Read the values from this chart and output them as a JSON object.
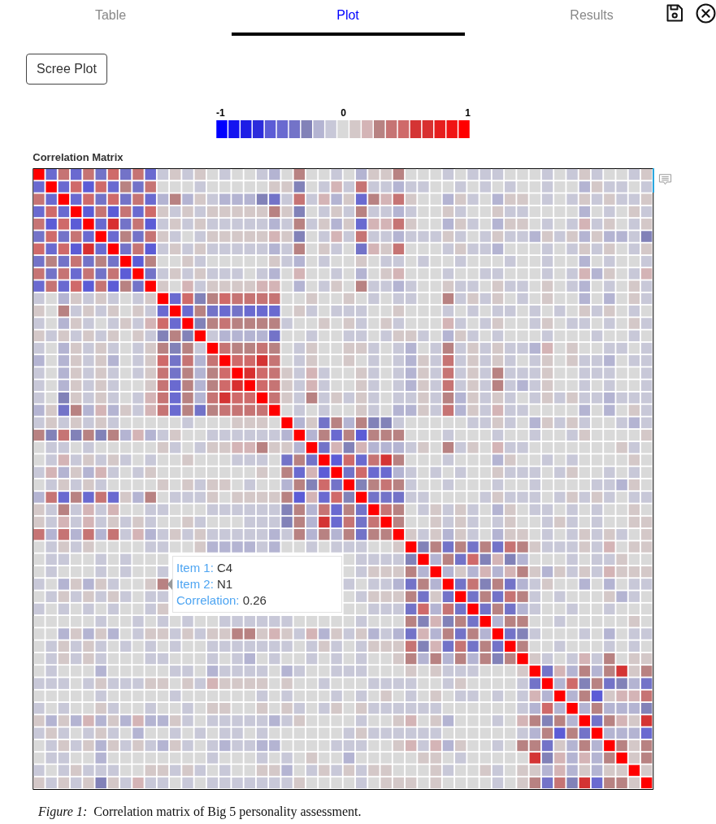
{
  "chart_data": {
    "type": "heatmap",
    "title": "Correlation Matrix",
    "categories": [
      null,
      null,
      null,
      null,
      null,
      null,
      null,
      null,
      null,
      null,
      null,
      null,
      null,
      null,
      null,
      null,
      null,
      null,
      null,
      null,
      null,
      null,
      null,
      null,
      null,
      null,
      null,
      null,
      null,
      null,
      null,
      null,
      null,
      null,
      null,
      null,
      null,
      null,
      null,
      null,
      null,
      null,
      null,
      null,
      null,
      null,
      null,
      null,
      null,
      null
    ],
    "y_categories": [
      null,
      null,
      null,
      null,
      null,
      null,
      null,
      null,
      null,
      null,
      null,
      null,
      null,
      null,
      null,
      null,
      null,
      null,
      null,
      null,
      null,
      null,
      null,
      null,
      null,
      null,
      null,
      null,
      null,
      null,
      null,
      null,
      null,
      null,
      null,
      null,
      null,
      null,
      null,
      null,
      null,
      null,
      null,
      null,
      null,
      null,
      null,
      null,
      null,
      null
    ],
    "cells": [
      [
        1,
        -0.5,
        0.4,
        -0.5,
        0.4,
        -0.4,
        0.5,
        -0.4,
        0.4,
        -0.5,
        -0.1,
        0.1,
        -0.1,
        0.1,
        0,
        -0.1,
        0,
        0,
        -0.1,
        -0.2,
        0,
        0.3,
        0,
        0,
        -0.1,
        0,
        -0.2,
        0.1,
        0.1,
        0.3,
        0,
        0,
        0,
        -0.1,
        0,
        -0.1,
        -0.1,
        -0.1,
        0,
        0,
        0,
        -0.1,
        0,
        -0.1,
        0.1,
        -0.1,
        0,
        0,
        -0.1,
        0.1
      ],
      [
        -0.5,
        1,
        -0.5,
        0.5,
        -0.6,
        0.5,
        -0.5,
        0.3,
        -0.4,
        0.4,
        0,
        0,
        0,
        -0.1,
        0,
        0,
        0,
        0,
        0,
        0.1,
        0.1,
        -0.3,
        0,
        -0.1,
        0.2,
        -0.1,
        0.4,
        -0.1,
        -0.1,
        -0.2,
        -0.1,
        -0.1,
        0,
        0,
        -0.1,
        0,
        -0.1,
        0,
        -0.1,
        0,
        0,
        -0.1,
        0,
        0,
        -0.2,
        0.1,
        -0.1,
        -0.1,
        0,
        -0.1
      ],
      [
        0.4,
        -0.5,
        1,
        -0.5,
        0.5,
        -0.4,
        0.5,
        -0.4,
        0.4,
        -0.5,
        -0.2,
        0.3,
        -0.2,
        0.1,
        -0.1,
        -0.2,
        -0.2,
        -0.2,
        -0.3,
        -0.4,
        -0.1,
        0.4,
        -0.1,
        0.2,
        -0.2,
        0.1,
        -0.5,
        0.3,
        0.2,
        0.4,
        0.1,
        0,
        0,
        -0.2,
        0.1,
        -0.1,
        0,
        -0.2,
        0.1,
        0.1,
        0,
        -0.1,
        0,
        -0.1,
        0.1,
        -0.1,
        0.1,
        -0.1,
        -0.1,
        0.1
      ],
      [
        -0.5,
        0.5,
        -0.5,
        1,
        -0.6,
        0.4,
        -0.6,
        0.4,
        -0.5,
        0.5,
        0.1,
        -0.1,
        0.1,
        -0.1,
        0.1,
        0.1,
        0.1,
        0.1,
        0.1,
        0.3,
        0.1,
        -0.3,
        0,
        -0.1,
        0.1,
        -0.1,
        0.3,
        -0.1,
        -0.1,
        -0.2,
        -0.1,
        0,
        0,
        0.1,
        -0.1,
        0,
        0,
        0.1,
        -0.1,
        -0.1,
        0,
        0,
        0,
        0,
        -0.2,
        0,
        -0.1,
        0,
        0.1,
        -0.1
      ],
      [
        0.4,
        -0.6,
        0.5,
        -0.6,
        1,
        -0.5,
        0.7,
        -0.4,
        0.4,
        -0.6,
        -0.1,
        0.1,
        -0.1,
        0.1,
        -0.1,
        -0.1,
        -0.1,
        -0.1,
        -0.1,
        -0.2,
        -0.1,
        0.3,
        -0.1,
        0.1,
        -0.2,
        0.1,
        -0.5,
        0.2,
        0.2,
        0.4,
        0.1,
        0,
        0,
        -0.2,
        0.1,
        -0.1,
        0,
        -0.2,
        0.1,
        0.1,
        0,
        -0.1,
        0,
        -0.1,
        0.2,
        -0.1,
        0.1,
        0,
        -0.1,
        0.1
      ],
      [
        -0.4,
        0.5,
        -0.4,
        0.4,
        -0.5,
        1,
        -0.5,
        0.3,
        -0.4,
        0.4,
        0.1,
        -0.1,
        0,
        -0.1,
        0.1,
        0.1,
        0.1,
        0.1,
        0.1,
        0.2,
        0.1,
        -0.3,
        0,
        -0.1,
        0.2,
        -0.1,
        0.4,
        -0.1,
        -0.1,
        -0.2,
        -0.1,
        -0.1,
        -0.1,
        0.1,
        -0.1,
        0,
        -0.1,
        0.1,
        -0.1,
        -0.1,
        -0.2,
        0.1,
        -0.1,
        0.1,
        -0.2,
        0.1,
        -0.2,
        -0.2,
        -0.1,
        -0.3
      ],
      [
        0.5,
        -0.5,
        0.5,
        -0.6,
        0.7,
        -0.5,
        1,
        -0.4,
        0.4,
        -0.6,
        -0.1,
        0.1,
        -0.1,
        0.1,
        -0.1,
        -0.1,
        -0.1,
        -0.1,
        -0.1,
        -0.2,
        -0.1,
        0.3,
        0,
        0.1,
        -0.1,
        0,
        -0.4,
        0.2,
        0.1,
        0.4,
        0,
        0,
        0,
        -0.1,
        0.1,
        -0.1,
        -0.1,
        -0.2,
        0,
        0,
        0,
        -0.1,
        0,
        -0.1,
        0.1,
        -0.1,
        0.1,
        0,
        -0.1,
        0.1
      ],
      [
        -0.4,
        0.3,
        -0.4,
        0.4,
        -0.4,
        0.3,
        -0.4,
        1,
        -0.6,
        0.3,
        0,
        0,
        0.1,
        -0.1,
        0,
        0,
        0,
        0,
        0,
        0.1,
        -0.1,
        -0.2,
        0,
        -0.1,
        0,
        0,
        0.1,
        0,
        -0.1,
        -0.1,
        0,
        -0.1,
        0,
        0,
        -0.1,
        0,
        0,
        0,
        -0.1,
        0,
        0,
        -0.1,
        0,
        0,
        -0.2,
        0,
        -0.1,
        0,
        0,
        -0.1
      ],
      [
        0.4,
        -0.4,
        0.4,
        -0.5,
        0.4,
        -0.4,
        0.4,
        -0.6,
        1,
        -0.4,
        -0.1,
        0.1,
        -0.1,
        0.1,
        -0.1,
        -0.1,
        -0.1,
        0,
        -0.1,
        -0.2,
        0,
        0.2,
        0,
        0,
        -0.1,
        0,
        -0.2,
        0,
        0.1,
        0.2,
        0,
        0,
        0,
        -0.1,
        0,
        0,
        -0.1,
        -0.1,
        0,
        0,
        0,
        -0.1,
        0,
        -0.1,
        0.2,
        -0.2,
        0.1,
        0,
        -0.1,
        0.2
      ],
      [
        -0.5,
        0.4,
        -0.5,
        0.5,
        -0.6,
        0.4,
        -0.6,
        0.3,
        -0.4,
        1,
        0.1,
        0,
        0.2,
        -0.1,
        0.1,
        0.1,
        0.1,
        0.1,
        0.2,
        0.2,
        0,
        -0.2,
        0,
        -0.1,
        0.1,
        0,
        0.3,
        -0.1,
        -0.1,
        -0.2,
        -0.1,
        0,
        0,
        0.1,
        -0.1,
        -0.1,
        0,
        0.1,
        -0.1,
        -0.1,
        0,
        0.1,
        0,
        -0.1,
        -0.2,
        0,
        -0.1,
        0,
        0.1,
        -0.1
      ],
      [
        -0.1,
        0,
        -0.2,
        0.1,
        -0.1,
        0.1,
        -0.1,
        0,
        -0.1,
        0.1,
        1,
        -0.5,
        0.5,
        -0.3,
        0.3,
        0.5,
        0.4,
        0.4,
        0.4,
        0.4,
        0,
        0,
        0.1,
        0,
        0,
        0.1,
        0,
        -0.1,
        0,
        -0.1,
        -0.1,
        0,
        0,
        0.26,
        -0.1,
        0.1,
        -0.1,
        0.1,
        0,
        -0.1,
        0,
        0.1,
        0,
        0,
        -0.2,
        0,
        -0.2,
        0,
        0.1,
        -0.1
      ],
      [
        0.1,
        0,
        0.3,
        -0.1,
        0.1,
        -0.1,
        0.1,
        0,
        0.1,
        -0.1,
        -0.5,
        1,
        -0.5,
        0.3,
        -0.4,
        -0.5,
        -0.4,
        -0.5,
        -0.5,
        -0.5,
        0,
        0.1,
        -0.1,
        0,
        -0.1,
        -0.1,
        -0.1,
        0,
        0,
        0.1,
        0,
        0,
        0,
        -0.1,
        0,
        -0.1,
        0,
        -0.1,
        -0.1,
        0,
        -0.1,
        0,
        -0.1,
        0,
        0.1,
        -0.1,
        0.1,
        0,
        -0.1,
        0
      ],
      [
        -0.1,
        0,
        -0.2,
        0.1,
        -0.1,
        0,
        -0.1,
        0.1,
        -0.1,
        0.2,
        0.5,
        -0.5,
        1,
        -0.3,
        0.3,
        0.4,
        0.3,
        0.3,
        0.3,
        0.3,
        -0.1,
        0,
        0,
        0.1,
        0,
        0.1,
        -0.1,
        0,
        0.1,
        -0.1,
        0,
        0,
        0,
        0.2,
        -0.1,
        0,
        -0.1,
        0.1,
        0,
        0,
        -0.1,
        0.1,
        0,
        -0.1,
        -0.1,
        0,
        -0.1,
        0,
        0.1,
        -0.1
      ],
      [
        0.1,
        -0.1,
        0.1,
        -0.1,
        0.1,
        -0.1,
        0.1,
        0,
        0.1,
        -0.1,
        -0.3,
        0.3,
        -0.3,
        1,
        -0.1,
        -0.2,
        -0.2,
        -0.2,
        -0.2,
        -0.4,
        0,
        0,
        -0.1,
        0,
        0,
        -0.1,
        -0.1,
        0,
        -0.1,
        0.1,
        0.1,
        -0.1,
        0,
        -0.2,
        0.1,
        -0.1,
        0,
        -0.1,
        0,
        0,
        0,
        -0.1,
        0,
        0,
        0,
        -0.1,
        0,
        0,
        -0.1,
        0
      ],
      [
        -0.1,
        0,
        -0.2,
        0.1,
        -0.1,
        0.1,
        -0.1,
        0,
        -0.1,
        0.1,
        0.3,
        -0.3,
        0.3,
        -0.1,
        1,
        0.4,
        0.3,
        0.3,
        0.4,
        0.3,
        0,
        -0.1,
        0.1,
        0,
        0,
        0.1,
        0.1,
        -0.1,
        0,
        -0.1,
        -0.2,
        0,
        -0.1,
        0.3,
        -0.1,
        0.1,
        -0.1,
        0.1,
        -0.1,
        -0.1,
        -0.2,
        0.2,
        0,
        0.1,
        0,
        0,
        -0.1,
        -0.1,
        0,
        -0.1
      ],
      [
        -0.2,
        0,
        -0.2,
        0.1,
        -0.1,
        0.1,
        -0.2,
        0,
        -0.1,
        0.1,
        0.5,
        -0.4,
        0.4,
        -0.2,
        0.4,
        1,
        0.5,
        0.5,
        0.6,
        0.4,
        0,
        -0.1,
        0.1,
        0,
        0,
        0.1,
        0,
        -0.1,
        0,
        -0.1,
        -0.2,
        0.1,
        -0.1,
        0.4,
        -0.1,
        0.1,
        -0.1,
        0.1,
        -0.1,
        0,
        -0.1,
        0.1,
        0,
        0.1,
        -0.1,
        -0.1,
        -0.2,
        0,
        -0.1,
        -0.1
      ],
      [
        -0.1,
        0,
        -0.2,
        0.1,
        -0.1,
        0.1,
        -0.1,
        0,
        -0.1,
        0.1,
        0.4,
        -0.4,
        0.3,
        -0.2,
        0.3,
        0.5,
        1,
        0.7,
        0.5,
        0.4,
        0.1,
        -0.1,
        0.2,
        -0.1,
        0,
        0,
        0.1,
        -0.1,
        0,
        -0.1,
        -0.2,
        0.1,
        -0.1,
        0.4,
        -0.1,
        0.1,
        -0.1,
        0.3,
        -0.1,
        -0.1,
        -0.1,
        0.1,
        0,
        0,
        -0.1,
        -0.1,
        -0.1,
        0,
        0,
        -0.1
      ],
      [
        -0.1,
        0,
        -0.2,
        0.1,
        -0.1,
        0.1,
        -0.1,
        0,
        0,
        0.1,
        0.4,
        -0.5,
        0.3,
        -0.2,
        0.3,
        0.5,
        0.7,
        1,
        0.5,
        0.4,
        0.1,
        -0.1,
        0.2,
        -0.1,
        0,
        0,
        0.1,
        -0.1,
        0,
        -0.1,
        -0.2,
        0.1,
        -0.1,
        0.4,
        -0.1,
        0.1,
        -0.1,
        0.3,
        -0.1,
        -0.2,
        -0.1,
        0.1,
        0,
        0,
        -0.1,
        0,
        -0.1,
        0,
        0,
        -0.1
      ],
      [
        -0.1,
        0,
        -0.3,
        0.1,
        -0.1,
        0.1,
        -0.1,
        0,
        -0.1,
        0.2,
        0.4,
        -0.5,
        0.3,
        -0.2,
        0.4,
        0.6,
        0.5,
        0.5,
        1,
        0.4,
        0.1,
        -0.1,
        0.3,
        -0.1,
        0.1,
        -0.1,
        0.1,
        -0.1,
        0,
        -0.1,
        -0.1,
        0.1,
        -0.1,
        0.3,
        -0.2,
        0.1,
        -0.1,
        0.1,
        -0.1,
        0,
        -0.1,
        0.1,
        -0.1,
        0.1,
        -0.1,
        -0.1,
        -0.2,
        -0.1,
        -0.1,
        -0.1
      ],
      [
        -0.2,
        0.1,
        -0.4,
        0.3,
        -0.2,
        0.2,
        -0.2,
        0.1,
        -0.1,
        0.2,
        0.4,
        -0.5,
        0.3,
        -0.4,
        0.3,
        0.4,
        0.4,
        0.4,
        0.4,
        1,
        0,
        -0.1,
        0,
        -0.1,
        0,
        0,
        0.1,
        -0.1,
        0,
        -0.2,
        -0.2,
        0.1,
        -0.1,
        0.4,
        -0.2,
        0.1,
        -0.1,
        0.2,
        -0.1,
        -0.1,
        0,
        0,
        0,
        0,
        -0.2,
        0,
        -0.2,
        0,
        0.1,
        -0.1
      ],
      [
        -0.1,
        0.1,
        -0.1,
        0.1,
        -0.1,
        0.1,
        -0.1,
        0,
        0,
        0,
        0,
        0,
        -0.1,
        0,
        0,
        0,
        0.1,
        0.1,
        0.1,
        0,
        1,
        -0.2,
        0.1,
        -0.4,
        0.3,
        -0.2,
        0.3,
        -0.3,
        -0.3,
        -0.1,
        0,
        0,
        0,
        0,
        0,
        -0.1,
        -0.1,
        0.1,
        -0.1,
        0,
        -0.2,
        0.1,
        -0.1,
        0.1,
        -0.1,
        0,
        0,
        -0.1,
        -0.2,
        -0.1
      ],
      [
        0.3,
        -0.3,
        0.4,
        -0.3,
        0.3,
        -0.3,
        0.3,
        -0.2,
        0.2,
        -0.2,
        -0.1,
        0.1,
        0,
        0,
        -0.1,
        -0.1,
        -0.1,
        -0.1,
        -0.1,
        -0.1,
        -0.2,
        1,
        -0.2,
        0.3,
        -0.5,
        0.3,
        -0.6,
        0.3,
        0.3,
        0.3,
        0,
        0,
        0,
        -0.1,
        0,
        0,
        0,
        -0.1,
        0,
        0,
        -0.1,
        0,
        0,
        -0.1,
        0.1,
        0,
        0,
        0,
        0,
        0.1
      ],
      [
        0,
        -0.1,
        -0.1,
        0,
        -0.1,
        0,
        0,
        0,
        0,
        0,
        0.1,
        -0.1,
        0,
        -0.1,
        0.1,
        0.1,
        0.2,
        0.2,
        0.3,
        0.1,
        0.1,
        -0.2,
        1,
        -0.4,
        0.2,
        -0.3,
        0.2,
        -0.2,
        -0.2,
        -0.2,
        -0.1,
        0.1,
        0,
        0.3,
        -0.1,
        0.1,
        0,
        0.2,
        -0.1,
        -0.1,
        0,
        0,
        0,
        0,
        0,
        0,
        0,
        0.1,
        -0.1,
        0
      ],
      [
        0,
        -0.1,
        0.2,
        -0.1,
        0.1,
        -0.1,
        0.1,
        -0.1,
        0,
        -0.1,
        0,
        0,
        0.1,
        0,
        0,
        0,
        -0.1,
        -0.1,
        -0.1,
        0,
        -0.4,
        0.3,
        -0.4,
        1,
        -0.6,
        0.5,
        -0.5,
        0.4,
        0.6,
        0.3,
        0,
        0,
        0,
        -0.1,
        0,
        0,
        0,
        -0.2,
        0.1,
        0,
        0,
        -0.1,
        0,
        -0.1,
        0,
        0,
        0,
        0,
        0.1,
        0
      ],
      [
        -0.1,
        0.2,
        -0.2,
        0.1,
        -0.2,
        0.2,
        -0.1,
        0,
        -0.1,
        0.1,
        0,
        0,
        0,
        0,
        0,
        0,
        0,
        0,
        0.1,
        0,
        0.3,
        -0.5,
        0.2,
        -0.6,
        1,
        -0.4,
        0.5,
        -0.5,
        -0.5,
        -0.2,
        -0.1,
        0,
        -0.1,
        0,
        -0.1,
        0,
        0,
        0.1,
        -0.1,
        -0.1,
        -0.1,
        0,
        -0.1,
        0.1,
        0,
        0,
        -0.1,
        0,
        -0.1,
        0
      ],
      [
        0,
        -0.1,
        0.1,
        -0.1,
        0.1,
        -0.1,
        0,
        0,
        0,
        0,
        0.1,
        0,
        0.1,
        -0.1,
        0.1,
        0.1,
        0,
        -0.1,
        0,
        0,
        -0.2,
        0.3,
        -0.3,
        0.5,
        -0.4,
        1,
        -0.3,
        0.3,
        0.4,
        0.3,
        -0.1,
        0,
        0,
        -0.1,
        0,
        0,
        0,
        -0.1,
        0,
        0,
        -0.1,
        0,
        0,
        0,
        0,
        -0.1,
        -0.1,
        -0.2,
        0.1,
        0
      ],
      [
        -0.2,
        0.4,
        -0.5,
        0.3,
        -0.5,
        0.4,
        -0.5,
        0.1,
        -0.2,
        0.3,
        0,
        -0.1,
        -0.1,
        -0.1,
        0.1,
        0,
        0.1,
        0.1,
        0.1,
        0.1,
        0.3,
        -0.6,
        0.2,
        -0.5,
        0.5,
        -0.3,
        1,
        -0.4,
        -0.4,
        -0.4,
        -0.1,
        -0.1,
        0,
        0,
        0,
        0,
        -0.1,
        0.1,
        -0.1,
        -0.1,
        -0.1,
        0,
        -0.1,
        0.1,
        -0.1,
        0.1,
        -0.1,
        0,
        -0.1,
        -0.1
      ],
      [
        0.1,
        -0.1,
        0.3,
        -0.1,
        0.2,
        -0.1,
        0.2,
        0,
        0,
        -0.1,
        -0.1,
        0,
        0,
        0,
        -0.1,
        -0.1,
        -0.1,
        -0.1,
        -0.1,
        -0.1,
        -0.3,
        0.3,
        -0.2,
        0.4,
        -0.5,
        0.3,
        -0.4,
        1,
        0.4,
        0.3,
        0,
        -0.1,
        0.1,
        -0.1,
        0.1,
        -0.1,
        0,
        -0.2,
        0.1,
        0,
        -0.1,
        -0.1,
        0,
        -0.1,
        0,
        -0.1,
        0,
        0,
        0.1,
        0
      ],
      [
        0.1,
        -0.1,
        0.2,
        -0.1,
        0.2,
        -0.1,
        0.1,
        -0.1,
        0.1,
        -0.1,
        0,
        0,
        0.1,
        -0.1,
        0,
        0,
        0,
        -0.1,
        -0.1,
        -0.1,
        -0.3,
        0.3,
        -0.2,
        0.6,
        -0.5,
        0.4,
        -0.4,
        0.4,
        1,
        0.3,
        0,
        0,
        0.1,
        -0.1,
        0.1,
        -0.1,
        0,
        -0.1,
        0.1,
        0,
        0,
        -0.1,
        0.1,
        -0.1,
        0,
        -0.1,
        0,
        0,
        0.1,
        0.1
      ],
      [
        0.4,
        -0.2,
        0.4,
        -0.2,
        0.4,
        -0.2,
        0.4,
        -0.1,
        0.2,
        -0.2,
        -0.1,
        0.1,
        -0.1,
        0.1,
        -0.1,
        -0.1,
        -0.1,
        -0.1,
        -0.1,
        -0.2,
        -0.1,
        0.3,
        -0.2,
        0.3,
        -0.2,
        0.3,
        -0.4,
        0.3,
        0.3,
        1,
        0.1,
        -0.1,
        0.1,
        -0.2,
        0.1,
        -0.1,
        0,
        -0.2,
        0.1,
        0.1,
        0,
        -0.1,
        0,
        -0.1,
        0.1,
        -0.1,
        0.1,
        -0.1,
        0,
        0.1
      ],
      [
        0,
        -0.1,
        0.1,
        -0.1,
        0.1,
        0,
        0,
        0,
        0,
        -0.1,
        -0.1,
        0,
        0,
        0.1,
        -0.2,
        -0.2,
        -0.2,
        -0.2,
        -0.1,
        -0.2,
        0,
        0,
        -0.1,
        0,
        -0.1,
        -0.1,
        -0.1,
        0,
        0,
        0.1,
        1,
        -0.3,
        0.3,
        -0.4,
        0.3,
        -0.4,
        0.3,
        -0.4,
        0.4,
        0.3,
        0.1,
        -0.1,
        -0.1,
        -0.1,
        0.1,
        -0.1,
        0.2,
        0,
        0.1,
        0.1
      ],
      [
        0,
        -0.1,
        -0.1,
        0,
        0,
        -0.1,
        0,
        -0.1,
        0,
        0,
        0,
        null,
        null,
        null,
        null,
        null,
        null,
        null,
        null,
        null,
        null,
        null,
        null,
        null,
        null,
        0,
        -0.1,
        -0.1,
        -0.1,
        -0.1,
        -0.3,
        1,
        -0.2,
        0.3,
        -0.4,
        0.5,
        -0.3,
        0.2,
        -0.3,
        -0.2,
        0,
        0,
        0,
        -0.1,
        0,
        -0.1,
        -0.1,
        0.1,
        0,
        0
      ],
      [
        0,
        -0.1,
        0,
        0,
        0,
        -0.1,
        0,
        -0.1,
        0,
        0,
        -0.1,
        null,
        null,
        null,
        null,
        null,
        null,
        null,
        null,
        null,
        null,
        null,
        null,
        null,
        null,
        0,
        -0.1,
        0.1,
        0.1,
        0.1,
        0.3,
        -0.2,
        1,
        -0.2,
        0.1,
        -0.2,
        0.2,
        -0.2,
        0.2,
        0.3,
        0.1,
        -0.2,
        0.1,
        -0.1,
        0.1,
        -0.1,
        0.2,
        0.1,
        0.1,
        0.1
      ],
      [
        -0.1,
        0,
        -0.2,
        0.1,
        -0.2,
        0.1,
        -0.1,
        0,
        0,
        0.1,
        0.26,
        null,
        null,
        null,
        null,
        null,
        null,
        null,
        null,
        null,
        null,
        null,
        null,
        null,
        null,
        -0.1,
        0,
        -0.1,
        -0.1,
        -0.2,
        -0.4,
        0.3,
        -0.2,
        1,
        -0.4,
        0.4,
        -0.3,
        0.3,
        -0.4,
        -0.2,
        -0.1,
        0.1,
        0,
        0,
        -0.2,
        0,
        -0.2,
        0,
        -0.1,
        -0.1
      ],
      [
        0,
        -0.1,
        0.1,
        -0.1,
        0.1,
        -0.1,
        0.1,
        -0.1,
        0,
        -0.1,
        -0.1,
        null,
        null,
        null,
        null,
        null,
        null,
        null,
        null,
        null,
        null,
        null,
        null,
        null,
        null,
        0,
        -0.1,
        0.1,
        0.1,
        0.1,
        0.3,
        -0.4,
        0.1,
        -0.4,
        1,
        -0.4,
        0.3,
        -0.4,
        0.4,
        0.3,
        -0.1,
        0,
        -0.1,
        0,
        0,
        0,
        0.1,
        -0.2,
        -0.1,
        0
      ],
      [
        -0.1,
        0,
        -0.1,
        0,
        -0.1,
        0,
        -0.1,
        0,
        0,
        -0.1,
        0.1,
        null,
        null,
        null,
        null,
        null,
        null,
        null,
        null,
        null,
        null,
        null,
        null,
        null,
        null,
        0,
        0,
        -0.1,
        -0.1,
        -0.1,
        -0.4,
        0.5,
        -0.2,
        0.4,
        -0.4,
        1,
        -0.4,
        0.3,
        -0.4,
        -0.2,
        -0.1,
        0,
        0,
        -0.1,
        0,
        0,
        -0.1,
        0,
        0,
        0
      ],
      [
        0,
        0,
        0,
        0,
        0,
        -0.1,
        0,
        0,
        -0.1,
        0,
        -0.1,
        0,
        -0.1,
        0,
        0,
        -0.1,
        -0.1,
        -0.1,
        -0.1,
        -0.1,
        -0.1,
        0,
        0,
        0,
        0,
        0,
        -0.1,
        0,
        0,
        0,
        0.3,
        -0.3,
        0.2,
        -0.3,
        0.3,
        -0.4,
        1,
        -0.2,
        0.3,
        0.3,
        0,
        0,
        -0.1,
        0,
        0,
        0,
        0,
        0,
        0.1,
        0
      ],
      [
        0,
        0,
        -0.2,
        0.1,
        -0.2,
        0.1,
        -0.2,
        0,
        -0.1,
        0.1,
        0.1,
        -0.1,
        0.1,
        -0.1,
        0.1,
        0.1,
        0.3,
        0.3,
        0.1,
        0.2,
        0.1,
        -0.1,
        0.2,
        -0.2,
        0.1,
        -0.1,
        0.1,
        -0.2,
        -0.1,
        -0.2,
        -0.4,
        0.2,
        -0.2,
        0.3,
        -0.4,
        0.3,
        -0.2,
        1,
        -0.4,
        -0.3,
        -0.1,
        0,
        0,
        0,
        -0.1,
        0,
        -0.2,
        0,
        -0.1,
        -0.1
      ],
      [
        0,
        -0.1,
        0.1,
        -0.1,
        0.1,
        -0.1,
        0,
        -0.1,
        0,
        -0.1,
        0,
        -0.1,
        0,
        0,
        -0.1,
        -0.1,
        -0.1,
        -0.1,
        -0.1,
        -0.1,
        -0.1,
        0,
        -0.1,
        0.1,
        -0.1,
        0,
        -0.1,
        0.1,
        0.1,
        0.1,
        0.4,
        -0.3,
        0.2,
        -0.4,
        0.4,
        -0.4,
        0.3,
        -0.4,
        1,
        0.3,
        0,
        0,
        -0.1,
        0,
        0,
        0,
        -0.1,
        0,
        -0.1,
        0
      ],
      [
        0,
        -0.1,
        0.1,
        -0.1,
        0.1,
        -0.1,
        0,
        0,
        0,
        -0.1,
        -0.1,
        0,
        0,
        0,
        -0.1,
        0,
        -0.1,
        -0.2,
        0,
        -0.1,
        0,
        0,
        -0.1,
        0,
        -0.1,
        0,
        -0.1,
        0,
        0,
        0.1,
        0.3,
        -0.2,
        0.3,
        -0.2,
        0.3,
        -0.2,
        0.3,
        -0.3,
        0.3,
        1,
        0.1,
        -0.1,
        0,
        -0.1,
        0.2,
        -0.1,
        0.3,
        0,
        0.1,
        0.1
      ],
      [
        0,
        -0.1,
        0,
        0,
        0,
        -0.2,
        0,
        0,
        0,
        0,
        0,
        -0.1,
        -0.1,
        0,
        -0.2,
        -0.1,
        -0.1,
        -0.1,
        -0.1,
        0,
        -0.2,
        -0.1,
        0,
        0,
        -0.1,
        -0.1,
        -0.1,
        0,
        0,
        0,
        0.1,
        0,
        0.1,
        -0.1,
        -0.1,
        -0.1,
        0,
        0,
        0,
        0.1,
        1,
        -0.4,
        0.2,
        -0.2,
        0.3,
        -0.2,
        0.3,
        0.6,
        0.1,
        0.3
      ],
      [
        -0.1,
        -0.1,
        -0.1,
        0,
        -0.1,
        0.1,
        -0.1,
        -0.1,
        -0.1,
        0.1,
        0.1,
        0,
        0.1,
        -0.1,
        0.2,
        0.1,
        0.1,
        0.1,
        0.1,
        0,
        0.1,
        0,
        0,
        -0.1,
        0,
        0,
        0,
        -0.1,
        -0.1,
        -0.1,
        -0.1,
        0,
        0,
        -0.1,
        0.1,
        0,
        0,
        0,
        0,
        -0.1,
        -0.4,
        1,
        -0.2,
        0.5,
        -0.3,
        0.3,
        -0.4,
        -0.3,
        -0.2,
        -0.4
      ],
      [
        0,
        0,
        0,
        0,
        0,
        -0.1,
        0,
        0,
        0,
        0,
        0,
        -0.1,
        0,
        0,
        0,
        0,
        0,
        0,
        -0.1,
        0,
        -0.1,
        0,
        0,
        0,
        -0.1,
        0,
        -0.1,
        0,
        0.1,
        0,
        -0.1,
        0,
        0.1,
        0,
        -0.1,
        -0.1,
        0,
        -0.1,
        0,
        -0.1,
        0.2,
        -0.2,
        1,
        -0.2,
        0.3,
        -0.6,
        0.1,
        0.2,
        0.2,
        0.4
      ],
      [
        -0.1,
        0,
        -0.1,
        0,
        0,
        0.1,
        -0.1,
        0,
        0,
        -0.1,
        0,
        0,
        -0.1,
        0,
        0.1,
        0.1,
        0,
        0,
        0.1,
        0,
        0.1,
        -0.1,
        0,
        -0.1,
        0.1,
        0,
        0.1,
        -0.1,
        -0.1,
        -0.1,
        -0.1,
        -0.1,
        -0.1,
        0,
        0,
        0,
        0,
        0,
        0,
        -0.1,
        -0.2,
        0.5,
        -0.2,
        1,
        -0.2,
        0.3,
        -0.2,
        -0.2,
        -0.2,
        -0.3
      ],
      [
        0.1,
        -0.2,
        0.1,
        -0.2,
        0.2,
        -0.2,
        0.1,
        -0.2,
        0.2,
        -0.2,
        -0.2,
        0.1,
        -0.1,
        0,
        -0.1,
        -0.1,
        -0.1,
        -0.1,
        -0.1,
        -0.2,
        -0.1,
        0.1,
        0,
        0,
        0,
        0,
        -0.1,
        0,
        0,
        0.1,
        0.2,
        0,
        0.1,
        -0.2,
        0,
        0,
        0,
        -0.1,
        0,
        0.2,
        0.3,
        -0.3,
        0.3,
        -0.2,
        1,
        -0.4,
        0.3,
        0.2,
        0.1,
        0.6
      ],
      [
        -0.1,
        0.1,
        -0.1,
        0,
        -0.1,
        0.1,
        -0.1,
        0,
        -0.2,
        0,
        0,
        -0.1,
        0,
        -0.1,
        0,
        -0.1,
        -0.1,
        0,
        -0.1,
        0,
        0,
        0,
        0,
        0,
        0,
        -0.1,
        0.1,
        -0.1,
        -0.1,
        -0.1,
        -0.1,
        -0.1,
        -0.1,
        0,
        0,
        0,
        0,
        0,
        0,
        -0.1,
        -0.2,
        0.3,
        -0.6,
        0.3,
        -0.4,
        1,
        -0.2,
        -0.2,
        -0.2,
        -0.5
      ],
      [
        0,
        -0.1,
        0.1,
        -0.1,
        0.1,
        -0.2,
        0.1,
        -0.1,
        0.1,
        -0.1,
        -0.2,
        0.1,
        -0.1,
        0,
        -0.1,
        -0.2,
        -0.1,
        -0.1,
        -0.2,
        -0.2,
        0,
        0,
        0,
        0,
        -0.1,
        -0.1,
        -0.1,
        0,
        0,
        0.1,
        0.2,
        -0.1,
        0.2,
        -0.2,
        0.1,
        0,
        0,
        -0.1,
        0,
        0.3,
        0.3,
        -0.4,
        0.1,
        -0.2,
        0.3,
        -0.2,
        1,
        0.3,
        0.1,
        0.3
      ],
      [
        0,
        -0.1,
        -0.1,
        0,
        0,
        -0.2,
        0,
        0,
        0,
        0,
        0,
        0,
        0,
        0,
        -0.1,
        0,
        0,
        0,
        -0.1,
        0,
        -0.1,
        0,
        0.1,
        0,
        0,
        -0.2,
        0,
        0,
        0,
        0,
        0,
        0.1,
        0.1,
        0,
        -0.1,
        0,
        0,
        0,
        0,
        0,
        0.6,
        -0.3,
        0.2,
        -0.2,
        0.2,
        -0.2,
        0.3,
        1,
        0.1,
        0.3
      ],
      [
        -0.1,
        0,
        -0.1,
        0.1,
        -0.1,
        -0.1,
        -0.1,
        0,
        0,
        0.1,
        0.1,
        -0.1,
        0.1,
        -0.1,
        0,
        -0.1,
        0,
        0,
        0.1,
        0.1,
        -0.2,
        0,
        -0.1,
        0.1,
        -0.1,
        0.1,
        -0.1,
        0.1,
        0.1,
        0,
        0,
        0,
        0.1,
        -0.1,
        0,
        0,
        0.1,
        -0.1,
        0,
        0.1,
        0.1,
        -0.2,
        0.2,
        -0.2,
        0.1,
        -0.2,
        0.1,
        0.1,
        1,
        0.1
      ],
      [
        0.1,
        -0.1,
        0.1,
        -0.1,
        0.1,
        -0.3,
        0.1,
        -0.1,
        0.2,
        -0.1,
        -0.1,
        0,
        -0.1,
        0,
        -0.1,
        -0.1,
        -0.1,
        -0.1,
        -0.1,
        -0.1,
        -0.1,
        0.1,
        0,
        0,
        0,
        0,
        -0.1,
        0,
        0.1,
        0.1,
        0.1,
        0,
        0.1,
        0,
        0,
        0,
        0,
        -0.1,
        0,
        0.1,
        0.3,
        -0.4,
        0.4,
        -0.3,
        0.6,
        -0.5,
        0.3,
        0.3,
        0.1,
        1
      ]
    ],
    "clim": [
      -1,
      1
    ],
    "cticks": [
      -1,
      0,
      1
    ],
    "colors": [
      "#0000ff",
      "#1414f0",
      "#1e1ee6",
      "#2c2cdc",
      "#5c5cd6",
      "#6a6ad0",
      "#7373c8",
      "#8282b8",
      "#b4b4d2",
      "#c8c8d8",
      "#d9d9d9",
      "#d4c8c8",
      "#d4b4b6",
      "#b88282",
      "#c67474",
      "#cf6a6a",
      "#d43434",
      "#d83030",
      "#e61e1e",
      "#f01414",
      "#ff0000"
    ],
    "tick_labels": false,
    "annotations": [
      "Table",
      "Plot",
      "Results",
      "Scree Plot",
      "Item 1: C4",
      "Item 2: N1",
      "Correlation: 0.26",
      "Figure 1: Correlation matrix of Big 5 personality assessment."
    ]
  }
}
